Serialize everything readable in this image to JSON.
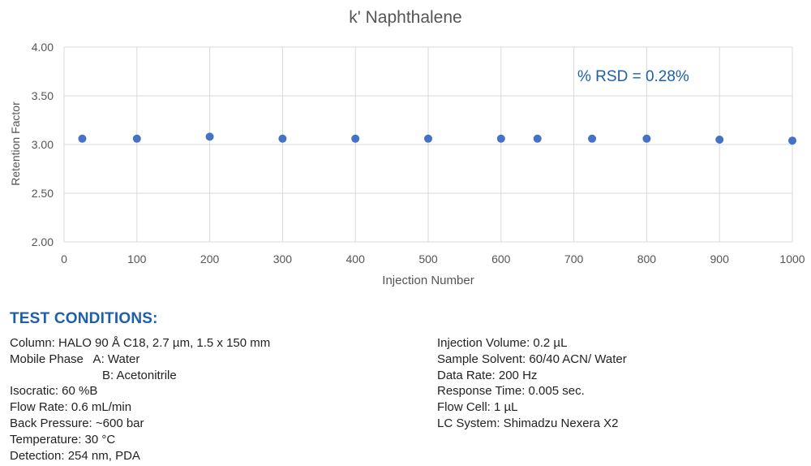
{
  "chart_data": {
    "type": "scatter",
    "title": "k' Naphthalene",
    "xlabel": "Injection Number",
    "ylabel": "Retention Factor",
    "xlim": [
      0,
      1000
    ],
    "ylim": [
      2.0,
      4.0
    ],
    "x_ticks": [
      "0",
      "100",
      "200",
      "300",
      "400",
      "500",
      "600",
      "700",
      "800",
      "900",
      "1000"
    ],
    "y_ticks": [
      "2.00",
      "2.50",
      "3.00",
      "3.50",
      "4.00"
    ],
    "grid": true,
    "annotation": "% RSD = 0.28%",
    "marker_color": "#4472c4",
    "annotation_color": "#1f5fa8",
    "points": [
      {
        "x": 25,
        "y": 3.06
      },
      {
        "x": 100,
        "y": 3.06
      },
      {
        "x": 200,
        "y": 3.08
      },
      {
        "x": 300,
        "y": 3.06
      },
      {
        "x": 400,
        "y": 3.06
      },
      {
        "x": 500,
        "y": 3.06
      },
      {
        "x": 600,
        "y": 3.06
      },
      {
        "x": 650,
        "y": 3.06
      },
      {
        "x": 725,
        "y": 3.06
      },
      {
        "x": 800,
        "y": 3.06
      },
      {
        "x": 900,
        "y": 3.05
      },
      {
        "x": 1000,
        "y": 3.04
      }
    ]
  },
  "test_conditions": {
    "heading": "TEST CONDITIONS:",
    "left": [
      "Column: HALO 90 Å C18, 2.7 µm, 1.5 x 150 mm",
      "Mobile Phase   A: Water",
      "B: Acetonitrile",
      "Isocratic: 60 %B",
      "Flow Rate: 0.6 mL/min",
      "Back Pressure: ~600 bar",
      "Temperature: 30 °C",
      "Detection: 254 nm, PDA"
    ],
    "right": [
      "Injection Volume: 0.2 µL",
      "Sample Solvent: 60/40 ACN/ Water",
      "Data Rate: 200 Hz",
      "Response Time: 0.005 sec.",
      "Flow Cell: 1 µL",
      "LC System: Shimadzu Nexera X2"
    ]
  }
}
